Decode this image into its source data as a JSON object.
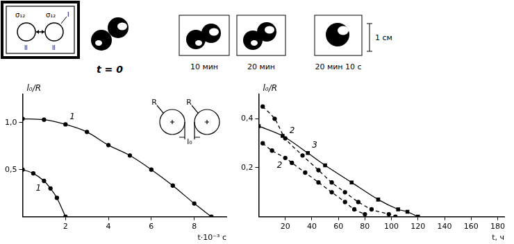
{
  "panels": {
    "schema": {
      "sigma_labels": [
        "σ₁₂",
        "σ₁₂"
      ],
      "outer_phase": "I",
      "inner_phases": [
        "II",
        "II"
      ]
    },
    "frames": [
      "t = 0",
      "10 мин",
      "20 мин",
      "20 мин 10 с"
    ],
    "scale_bar": "1 см"
  },
  "chart_data": [
    {
      "type": "line",
      "x_label": "t·10⁻³ с",
      "y_label": "l₀/R",
      "xlim": [
        0,
        9.5
      ],
      "ylim": [
        0,
        1.3
      ],
      "xticks": [
        2,
        4,
        6,
        8
      ],
      "yticks": [
        {
          "value": 0.5,
          "label": "0,5"
        },
        {
          "value": 1,
          "label": "1,0"
        }
      ],
      "grid": false,
      "inset": {
        "radius_labels": [
          "R",
          "R"
        ],
        "gap_label": "l₀"
      },
      "series": [
        {
          "name": "1",
          "color": "#000000",
          "marker": "circle",
          "line_style": "solid",
          "x": [
            0,
            1,
            2,
            3,
            4,
            5,
            6,
            7,
            8,
            8.8
          ],
          "values": [
            1.04,
            1.03,
            0.98,
            0.9,
            0.76,
            0.65,
            0.5,
            0.33,
            0.14,
            0
          ]
        },
        {
          "name": "1",
          "color": "#000000",
          "marker": "circle",
          "line_style": "solid",
          "x": [
            0,
            0.5,
            1,
            1.3,
            1.6,
            2.0
          ],
          "values": [
            0.5,
            0.46,
            0.38,
            0.3,
            0.2,
            0
          ]
        }
      ]
    },
    {
      "type": "line",
      "x_label": "t, ч",
      "y_label": "l₀/R",
      "xlim": [
        0,
        185
      ],
      "ylim": [
        0,
        0.5
      ],
      "xticks": [
        20,
        40,
        60,
        80,
        100,
        120,
        140,
        160,
        180
      ],
      "yticks": [
        {
          "value": 0.2,
          "label": "0,2"
        },
        {
          "value": 0.4,
          "label": "0,4"
        }
      ],
      "grid": false,
      "series": [
        {
          "name": "2",
          "color": "#000000",
          "marker": "circle",
          "line_style": "dashed",
          "x": [
            3,
            12,
            20,
            33,
            45,
            55,
            65,
            75,
            85,
            98,
            103
          ],
          "values": [
            0.45,
            0.4,
            0.32,
            0.25,
            0.19,
            0.14,
            0.1,
            0.06,
            0.03,
            0.01,
            0
          ]
        },
        {
          "name": "2",
          "color": "#000000",
          "marker": "circle",
          "line_style": "dashed",
          "x": [
            3,
            10,
            20,
            25,
            35,
            45,
            55,
            65,
            72,
            80
          ],
          "values": [
            0.3,
            0.27,
            0.24,
            0.22,
            0.18,
            0.14,
            0.1,
            0.06,
            0.03,
            0.01
          ]
        },
        {
          "name": "3",
          "color": "#000000",
          "marker": "square",
          "line_style": "solid",
          "x": [
            0,
            18,
            37,
            50,
            70,
            90,
            105,
            112,
            120
          ],
          "values": [
            0.37,
            0.33,
            0.26,
            0.21,
            0.14,
            0.07,
            0.03,
            0.02,
            0
          ]
        }
      ]
    }
  ]
}
